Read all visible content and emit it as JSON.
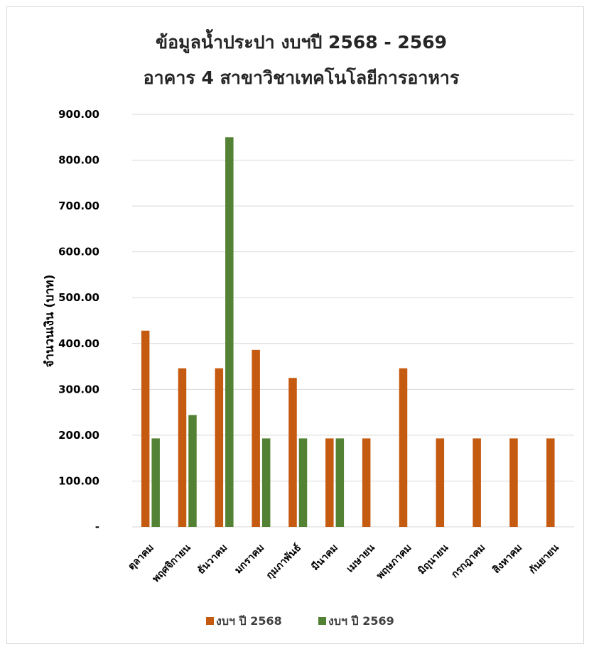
{
  "chart_data": {
    "type": "bar",
    "title": "ข้อมูลน้ำประปา งบฯปี 2568 - 2569",
    "subtitle": "อาคาร 4 สาขาวิชาเทคโนโลยีการอาหาร",
    "xlabel": "",
    "ylabel": "จำนวนเงิน (บาท)",
    "ylim": [
      0,
      900
    ],
    "yticks": [
      0,
      100,
      200,
      300,
      400,
      500,
      600,
      700,
      800,
      900
    ],
    "ytick_labels": [
      "-",
      "100.00",
      "200.00",
      "300.00",
      "400.00",
      "500.00",
      "600.00",
      "700.00",
      "800.00",
      "900.00"
    ],
    "grid": true,
    "legend_position": "bottom",
    "categories": [
      "ตุลาคม",
      "พฤศจิกายน",
      "ธันวาคม",
      "มกราคม",
      "กุมภาพันธ์",
      "มีนาคม",
      "เมษายน",
      "พฤษภาคม",
      "มิถุนายน",
      "กรกฎาคม",
      "สิงหาคม",
      "กันยายน"
    ],
    "series": [
      {
        "name": "งบฯ ปี 2568",
        "color": "#c55a11",
        "values": [
          428,
          346,
          346,
          386,
          325,
          193,
          193,
          346,
          193,
          193,
          193,
          193
        ]
      },
      {
        "name": "งบฯ ปี 2569",
        "color": "#548235",
        "values": [
          193,
          244,
          850,
          193,
          193,
          193,
          null,
          null,
          null,
          null,
          null,
          null
        ]
      }
    ],
    "colors": {
      "grid": "#d9d9d9",
      "text": "#000000",
      "title": "#262626"
    }
  }
}
